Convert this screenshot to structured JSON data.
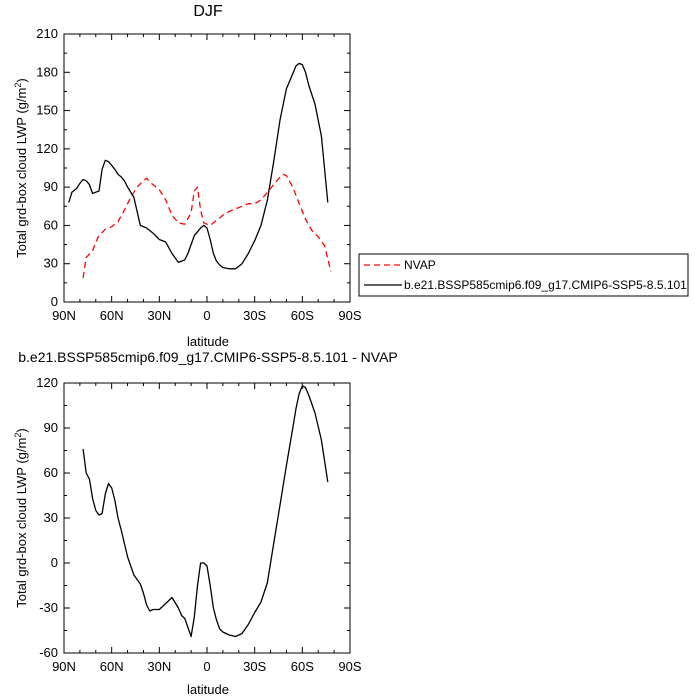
{
  "chart_data": [
    {
      "type": "line",
      "title": "DJF",
      "xlabel": "latitude",
      "ylabel_main": "Total grd-box cloud LWP (g/m",
      "ylabel_sup": "2",
      "ylabel_end": ")",
      "xlim": [
        90,
        -90
      ],
      "ylim": [
        0,
        210
      ],
      "x_ticks": [
        90,
        60,
        30,
        0,
        -30,
        -60,
        -90
      ],
      "x_tick_labels": [
        "90N",
        "60N",
        "30N",
        "0",
        "30S",
        "60S",
        "90S"
      ],
      "y_ticks": [
        0,
        30,
        60,
        90,
        120,
        150,
        180,
        210
      ],
      "y_tick_labels": [
        "0",
        "30",
        "60",
        "90",
        "120",
        "150",
        "180",
        "210"
      ],
      "legend": "right",
      "series": [
        {
          "name": "NVAP",
          "color": "#ff0000",
          "dash": "dashed",
          "x": [
            78,
            76,
            72,
            70,
            68,
            64,
            60,
            56,
            52,
            48,
            44,
            40,
            38,
            36,
            34,
            30,
            26,
            22,
            18,
            14,
            10,
            8,
            6,
            4,
            2,
            0,
            -2,
            -4,
            -6,
            -10,
            -14,
            -18,
            -22,
            -26,
            -30,
            -34,
            -38,
            -42,
            -46,
            -48,
            -50,
            -54,
            -58,
            -62,
            -66,
            -70,
            -74,
            -78
          ],
          "y": [
            19,
            35,
            40,
            47,
            52,
            57,
            59,
            63,
            72,
            82,
            90,
            95,
            97,
            94,
            92,
            88,
            80,
            68,
            62,
            61,
            70,
            87,
            90,
            72,
            62,
            61,
            60,
            62,
            64,
            68,
            71,
            73,
            75,
            77,
            77,
            80,
            86,
            92,
            98,
            100,
            99,
            90,
            77,
            65,
            56,
            51,
            44,
            24
          ]
        },
        {
          "name": "b.e21.BSSP585cmip6.f09_g17.CMIP6-SSP5-8.5.101",
          "color": "#000000",
          "dash": "solid",
          "x": [
            87,
            85,
            82,
            80,
            78,
            76,
            74,
            72,
            70,
            68,
            66,
            64,
            62,
            60,
            58,
            56,
            54,
            52,
            50,
            46,
            42,
            38,
            34,
            30,
            26,
            22,
            18,
            14,
            12,
            10,
            8,
            6,
            4,
            2,
            0,
            -2,
            -4,
            -6,
            -8,
            -10,
            -14,
            -18,
            -22,
            -26,
            -30,
            -34,
            -38,
            -42,
            -46,
            -50,
            -54,
            -56,
            -58,
            -60,
            -62,
            -64,
            -68,
            -72,
            -76
          ],
          "y": [
            78,
            86,
            89,
            93,
            96,
            95,
            92,
            85,
            86,
            87,
            104,
            111,
            110,
            107,
            104,
            100,
            98,
            95,
            90,
            82,
            60,
            58,
            54,
            49,
            47,
            38,
            31,
            33,
            38,
            45,
            52,
            55,
            58,
            60,
            58,
            49,
            38,
            32,
            29,
            27,
            26,
            26,
            30,
            38,
            48,
            60,
            80,
            110,
            143,
            167,
            179,
            185,
            187,
            186,
            180,
            170,
            155,
            130,
            78
          ]
        }
      ]
    },
    {
      "type": "line",
      "title": "b.e21.BSSP585cmip6.f09_g17.CMIP6-SSP5-8.5.101 - NVAP",
      "xlabel": "latitude",
      "ylabel_main": "Total grd-box cloud LWP (g/m",
      "ylabel_sup": "2",
      "ylabel_end": ")",
      "xlim": [
        90,
        -90
      ],
      "ylim": [
        -60,
        120
      ],
      "x_ticks": [
        90,
        60,
        30,
        0,
        -30,
        -60,
        -90
      ],
      "x_tick_labels": [
        "90N",
        "60N",
        "30N",
        "0",
        "30S",
        "60S",
        "90S"
      ],
      "y_ticks": [
        -60,
        -30,
        0,
        30,
        60,
        90,
        120
      ],
      "y_tick_labels": [
        "-60",
        "-30",
        "0",
        "30",
        "60",
        "90",
        "120"
      ],
      "series": [
        {
          "color": "#000000",
          "dash": "solid",
          "x": [
            78,
            76,
            74,
            72,
            70,
            68,
            66,
            64,
            62,
            60,
            58,
            56,
            54,
            52,
            50,
            46,
            42,
            40,
            38,
            36,
            34,
            30,
            26,
            22,
            18,
            16,
            14,
            10,
            8,
            6,
            4,
            2,
            0,
            -2,
            -4,
            -6,
            -8,
            -10,
            -14,
            -18,
            -22,
            -26,
            -30,
            -34,
            -38,
            -42,
            -46,
            -50,
            -54,
            -56,
            -58,
            -60,
            -62,
            -64,
            -68,
            -72,
            -76
          ],
          "y": [
            76,
            60,
            56,
            43,
            35,
            32,
            33,
            46,
            53,
            50,
            42,
            30,
            22,
            13,
            4,
            -8,
            -14,
            -20,
            -28,
            -32,
            -31,
            -31,
            -27,
            -23,
            -30,
            -35,
            -37,
            -49,
            -36,
            -15,
            0,
            0,
            -2,
            -15,
            -30,
            -38,
            -44,
            -46,
            -48,
            -49,
            -47,
            -41,
            -33,
            -26,
            -13,
            13,
            39,
            65,
            90,
            103,
            113,
            118,
            117,
            112,
            100,
            82,
            54
          ]
        }
      ]
    }
  ]
}
